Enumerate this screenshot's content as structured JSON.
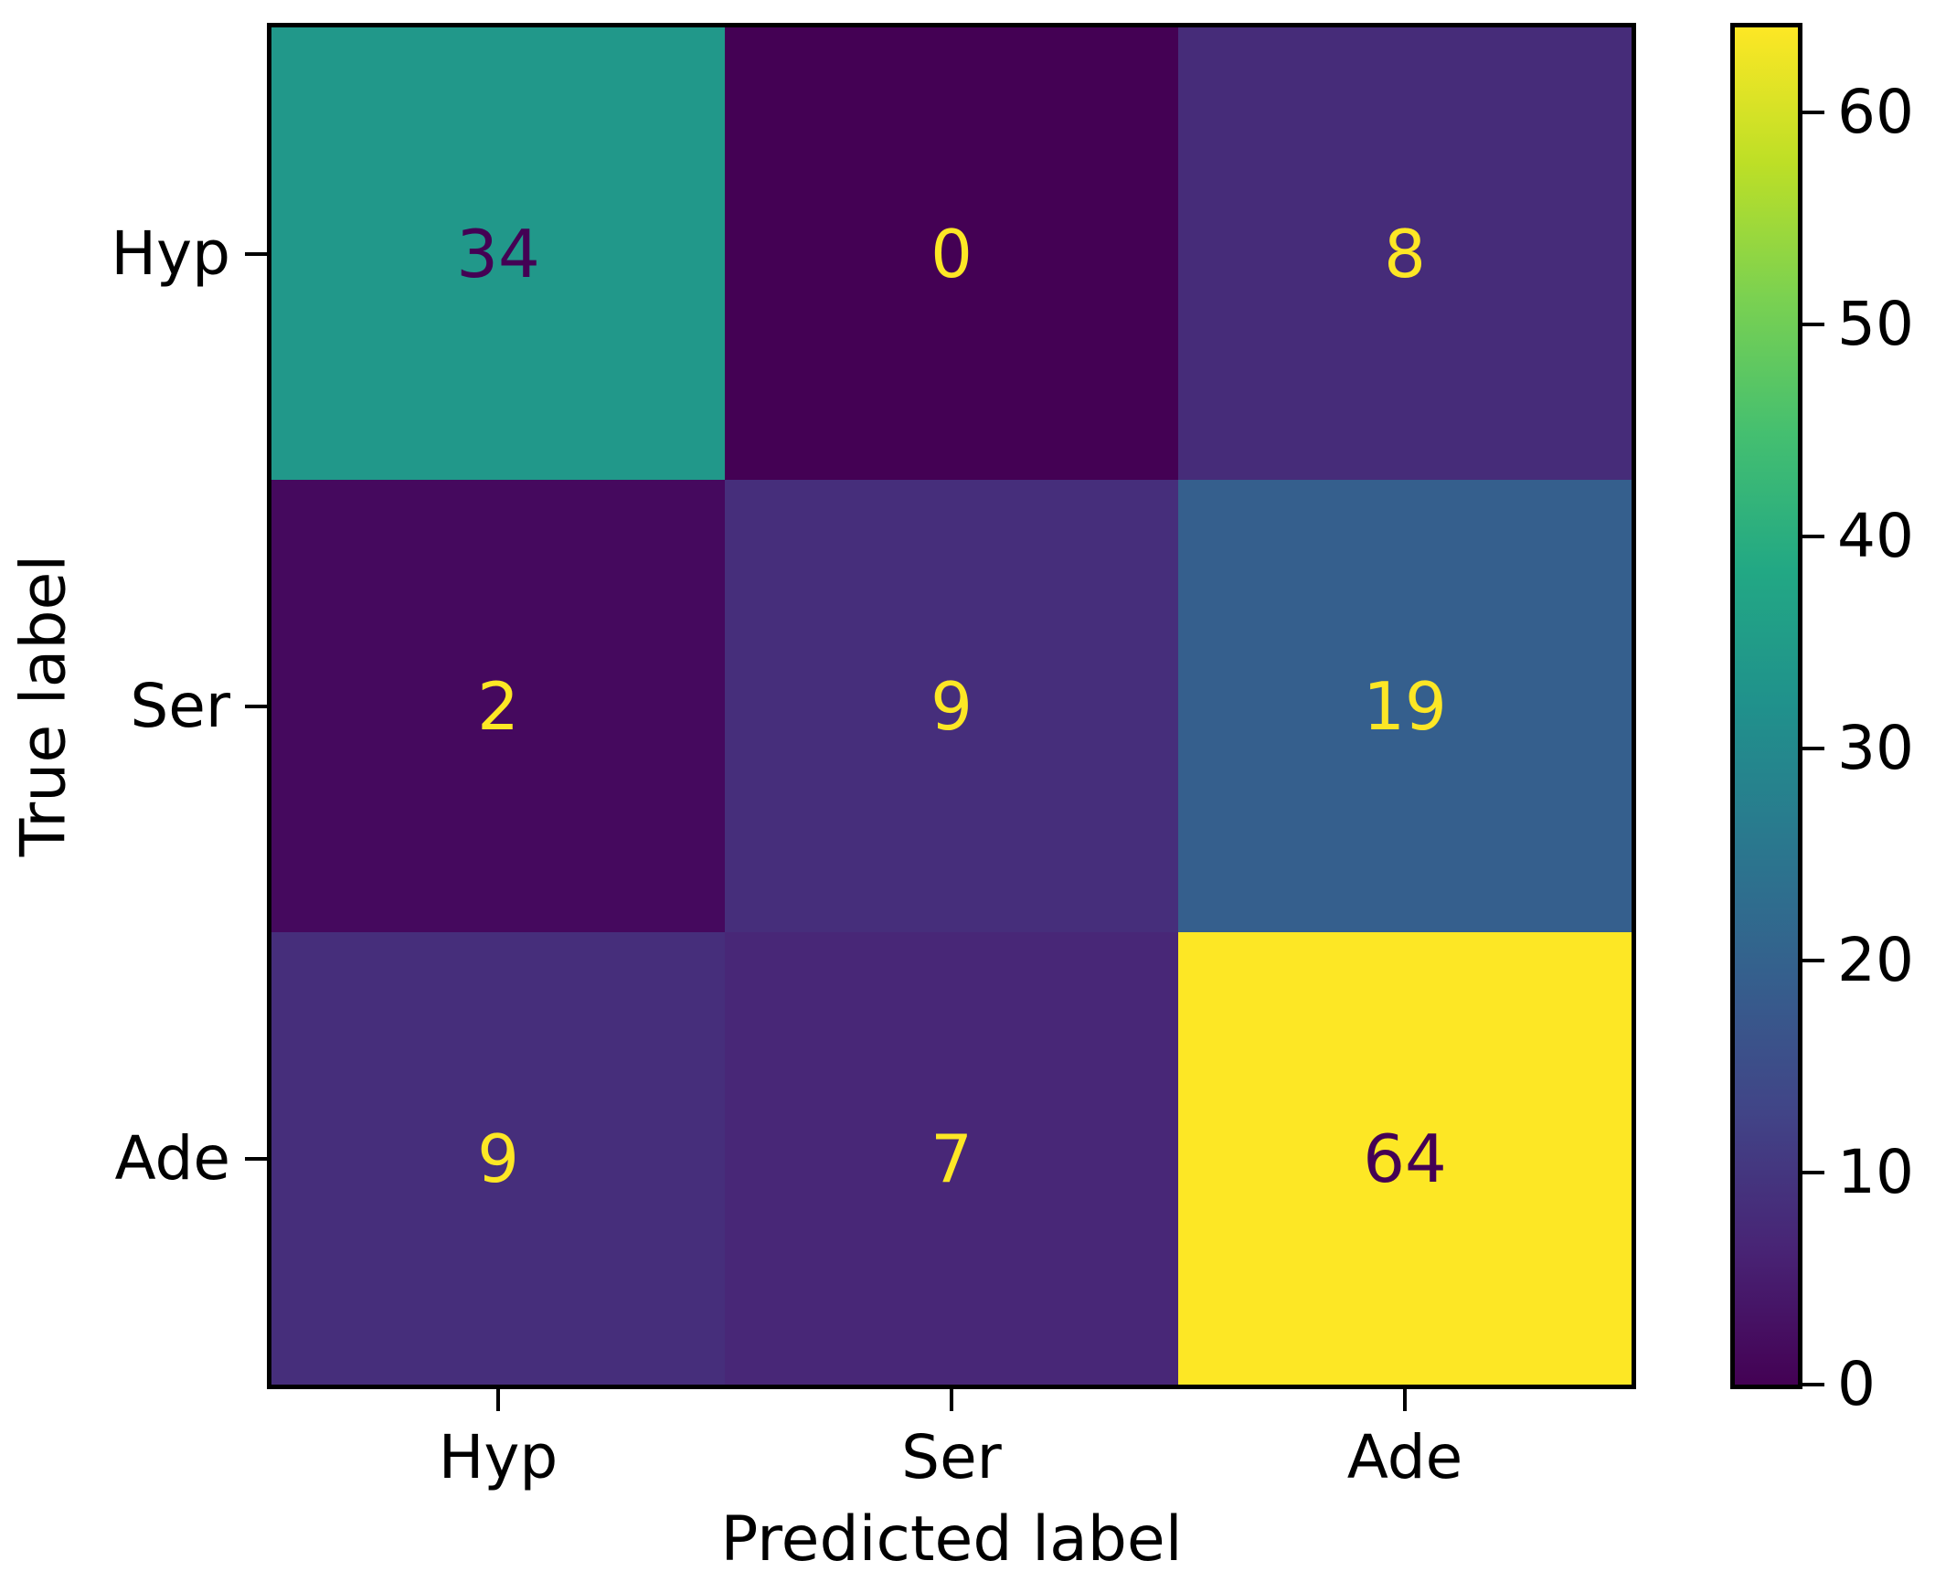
{
  "chart_data": {
    "type": "heatmap",
    "title": "",
    "xlabel": "Predicted label",
    "ylabel": "True label",
    "x_categories": [
      "Hyp",
      "Ser",
      "Ade"
    ],
    "y_categories": [
      "Hyp",
      "Ser",
      "Ade"
    ],
    "matrix": [
      [
        34,
        0,
        8
      ],
      [
        2,
        9,
        19
      ],
      [
        9,
        7,
        64
      ]
    ],
    "vmin": 0,
    "vmax": 64,
    "colormap": "viridis",
    "colormap_stops": [
      "#440154",
      "#482475",
      "#414487",
      "#355f8d",
      "#2a788e",
      "#20918c",
      "#22a884",
      "#44bf70",
      "#7ad151",
      "#bddf26",
      "#fde725"
    ],
    "cell_colors": [
      [
        "#21988a",
        "#440154",
        "#462c79"
      ],
      [
        "#45095e",
        "#462e7b",
        "#355f8d"
      ],
      [
        "#462e7b",
        "#482777",
        "#fde725"
      ]
    ],
    "cell_text_colors": [
      [
        "#440154",
        "#fde725",
        "#fde725"
      ],
      [
        "#fde725",
        "#fde725",
        "#fde725"
      ],
      [
        "#fde725",
        "#fde725",
        "#440154"
      ]
    ],
    "colorbar_ticks": [
      "0",
      "10",
      "20",
      "30",
      "40",
      "50",
      "60"
    ],
    "colorbar_tick_values": [
      0,
      10,
      20,
      30,
      40,
      50,
      60
    ],
    "legend_position": "right-colorbar",
    "grid": false,
    "axis_color": "#000000",
    "background_color": "#ffffff"
  }
}
